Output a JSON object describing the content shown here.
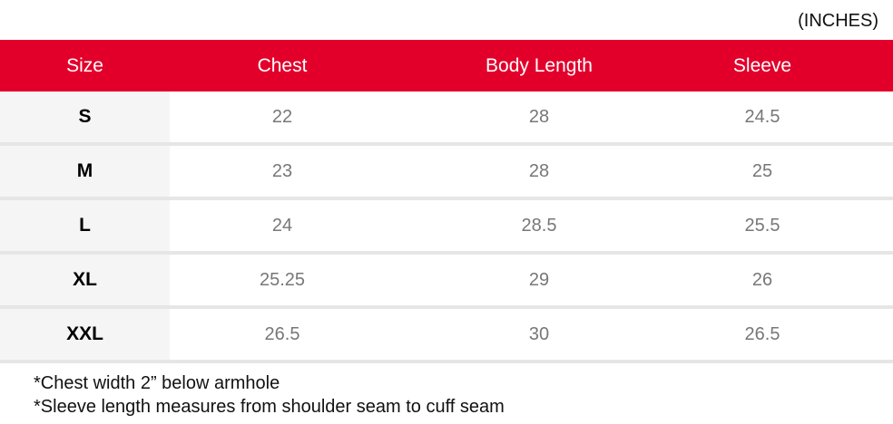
{
  "unit_label": "(INCHES)",
  "headers": [
    "Size",
    "Chest",
    "Body Length",
    "Sleeve"
  ],
  "rows": [
    {
      "size": "S",
      "chest": "22",
      "body_length": "28",
      "sleeve": "24.5"
    },
    {
      "size": "M",
      "chest": "23",
      "body_length": "28",
      "sleeve": "25"
    },
    {
      "size": "L",
      "chest": "24",
      "body_length": "28.5",
      "sleeve": "25.5"
    },
    {
      "size": "XL",
      "chest": "25.25",
      "body_length": "29",
      "sleeve": "26"
    },
    {
      "size": "XXL",
      "chest": "26.5",
      "body_length": "30",
      "sleeve": "26.5"
    }
  ],
  "notes": [
    "*Chest width 2” below armhole",
    "*Sleeve length measures from shoulder seam to cuff seam"
  ],
  "colors": {
    "header_bg": "#e2002b",
    "size_col_bg": "#f5f5f5"
  }
}
